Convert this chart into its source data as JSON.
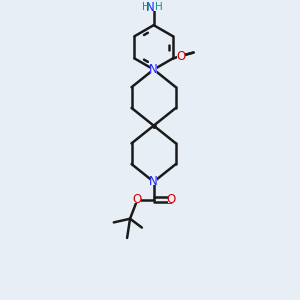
{
  "background_color": "#e8eef5",
  "bond_color": "#1a1a1a",
  "N_color": "#2020ff",
  "O_color": "#cc0000",
  "H_color": "#1a9090",
  "bond_width": 1.8,
  "figsize": [
    3.0,
    3.0
  ],
  "dpi": 100,
  "xlim": [
    -1.2,
    1.2
  ],
  "ylim": [
    -2.0,
    2.0
  ]
}
